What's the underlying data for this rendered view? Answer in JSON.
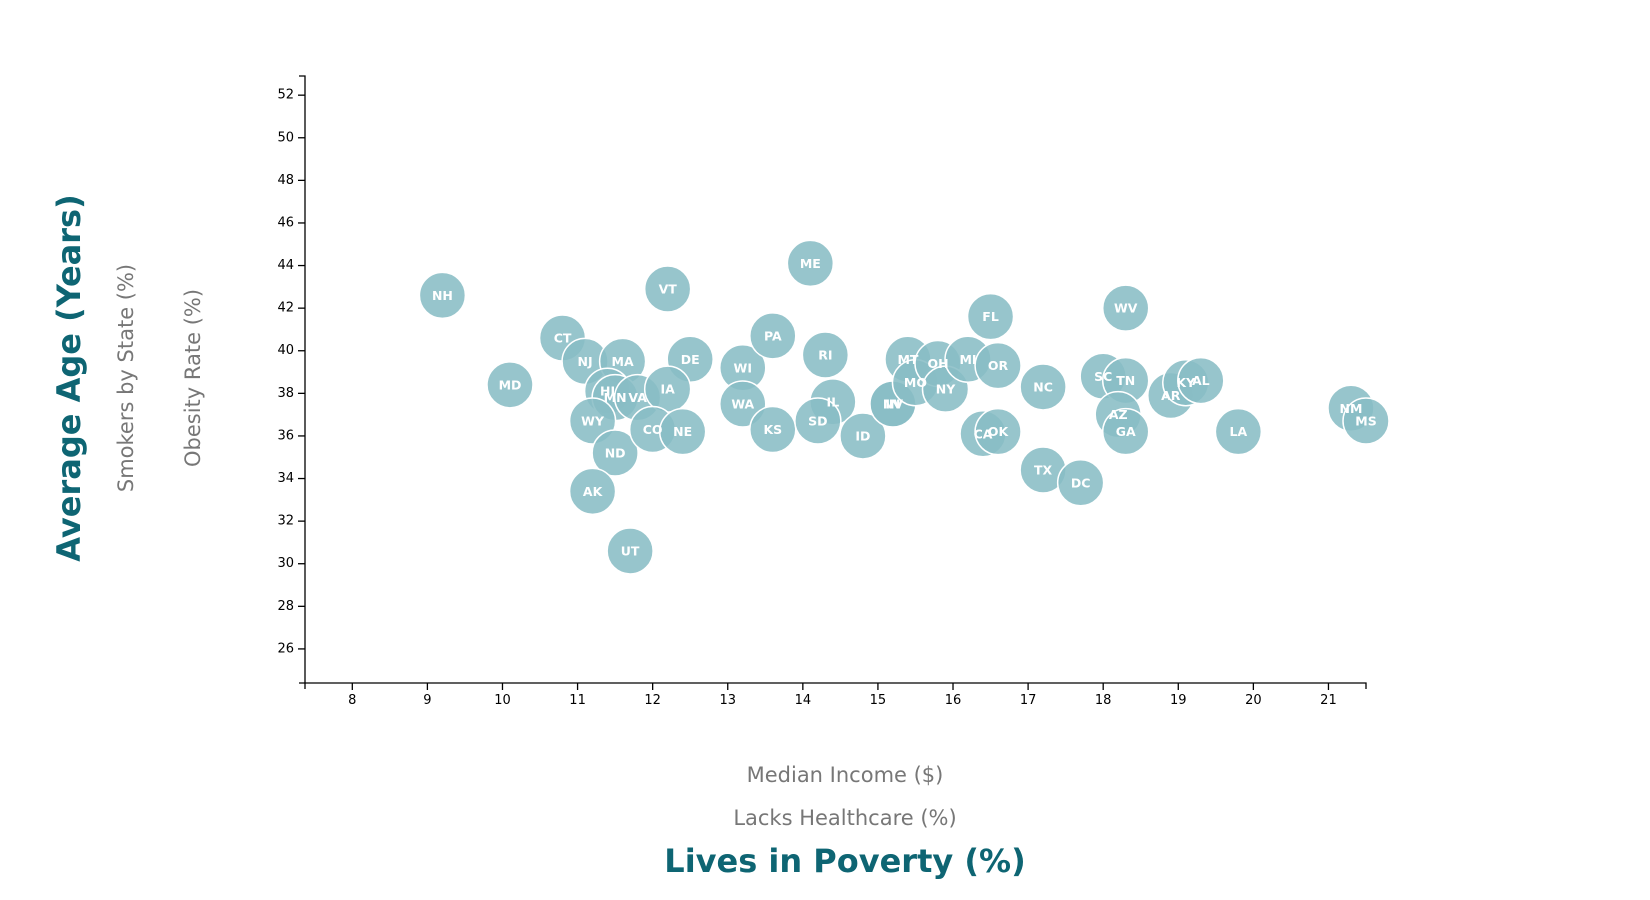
{
  "chart_data": {
    "type": "scatter",
    "title": "",
    "xlim": [
      7.37,
      21.5
    ],
    "ylim": [
      24.4,
      52.9
    ],
    "x_ticks": [
      8,
      9,
      10,
      11,
      12,
      13,
      14,
      15,
      16,
      17,
      18,
      19,
      20,
      21
    ],
    "y_ticks": [
      26,
      28,
      30,
      32,
      34,
      36,
      38,
      40,
      42,
      44,
      46,
      48,
      50,
      52
    ],
    "x_axis_labels": {
      "income": "Median Income ($)",
      "healthcare": "Lacks Healthcare (%)",
      "poverty": "Lives in Poverty (%)"
    },
    "y_axis_labels": {
      "age": "Average Age (Years)",
      "smokers": "Smokers by State (%)",
      "obesity": "Obesity Rate (%)"
    },
    "active_x": "poverty",
    "active_y": "age",
    "colors": {
      "circle_fill": "#89bdc5",
      "active_label": "#0e6573",
      "inactive_label": "#777777"
    },
    "points": [
      {
        "abbr": "NH",
        "poverty": 9.2,
        "age": 42.6
      },
      {
        "abbr": "MD",
        "poverty": 10.1,
        "age": 38.4
      },
      {
        "abbr": "CT",
        "poverty": 10.8,
        "age": 40.6
      },
      {
        "abbr": "NJ",
        "poverty": 11.1,
        "age": 39.5
      },
      {
        "abbr": "MA",
        "poverty": 11.6,
        "age": 39.5
      },
      {
        "abbr": "HI",
        "poverty": 11.4,
        "age": 38.1
      },
      {
        "abbr": "MN",
        "poverty": 11.5,
        "age": 37.8
      },
      {
        "abbr": "VA",
        "poverty": 11.8,
        "age": 37.8
      },
      {
        "abbr": "WY",
        "poverty": 11.2,
        "age": 36.7
      },
      {
        "abbr": "ND",
        "poverty": 11.5,
        "age": 35.2
      },
      {
        "abbr": "AK",
        "poverty": 11.2,
        "age": 33.4
      },
      {
        "abbr": "UT",
        "poverty": 11.7,
        "age": 30.6
      },
      {
        "abbr": "VT",
        "poverty": 12.2,
        "age": 42.9
      },
      {
        "abbr": "DE",
        "poverty": 12.5,
        "age": 39.6
      },
      {
        "abbr": "IA",
        "poverty": 12.2,
        "age": 38.2
      },
      {
        "abbr": "CO",
        "poverty": 12.0,
        "age": 36.3
      },
      {
        "abbr": "NE",
        "poverty": 12.4,
        "age": 36.2
      },
      {
        "abbr": "WI",
        "poverty": 13.2,
        "age": 39.2
      },
      {
        "abbr": "WA",
        "poverty": 13.2,
        "age": 37.5
      },
      {
        "abbr": "PA",
        "poverty": 13.6,
        "age": 40.7
      },
      {
        "abbr": "KS",
        "poverty": 13.6,
        "age": 36.3
      },
      {
        "abbr": "ME",
        "poverty": 14.1,
        "age": 44.1
      },
      {
        "abbr": "RI",
        "poverty": 14.3,
        "age": 39.8
      },
      {
        "abbr": "IL",
        "poverty": 14.4,
        "age": 37.6
      },
      {
        "abbr": "SD",
        "poverty": 14.2,
        "age": 36.7
      },
      {
        "abbr": "ID",
        "poverty": 14.8,
        "age": 36.0
      },
      {
        "abbr": "NV",
        "poverty": 15.2,
        "age": 37.5
      },
      {
        "abbr": "IN",
        "poverty": 15.2,
        "age": 37.5
      },
      {
        "abbr": "MT",
        "poverty": 15.4,
        "age": 39.6
      },
      {
        "abbr": "MO",
        "poverty": 15.5,
        "age": 38.5
      },
      {
        "abbr": "OH",
        "poverty": 15.8,
        "age": 39.4
      },
      {
        "abbr": "NY",
        "poverty": 15.9,
        "age": 38.2
      },
      {
        "abbr": "MI",
        "poverty": 16.2,
        "age": 39.6
      },
      {
        "abbr": "FL",
        "poverty": 16.5,
        "age": 41.6
      },
      {
        "abbr": "OR",
        "poverty": 16.6,
        "age": 39.3
      },
      {
        "abbr": "CA",
        "poverty": 16.4,
        "age": 36.1
      },
      {
        "abbr": "OK",
        "poverty": 16.6,
        "age": 36.2
      },
      {
        "abbr": "NC",
        "poverty": 17.2,
        "age": 38.3
      },
      {
        "abbr": "TX",
        "poverty": 17.2,
        "age": 34.4
      },
      {
        "abbr": "DC",
        "poverty": 17.7,
        "age": 33.8
      },
      {
        "abbr": "SC",
        "poverty": 18.0,
        "age": 38.8
      },
      {
        "abbr": "TN",
        "poverty": 18.3,
        "age": 38.6
      },
      {
        "abbr": "AZ",
        "poverty": 18.2,
        "age": 37.0
      },
      {
        "abbr": "GA",
        "poverty": 18.3,
        "age": 36.2
      },
      {
        "abbr": "WV",
        "poverty": 18.3,
        "age": 42.0
      },
      {
        "abbr": "AR",
        "poverty": 18.9,
        "age": 37.9
      },
      {
        "abbr": "KY",
        "poverty": 19.1,
        "age": 38.5
      },
      {
        "abbr": "AL",
        "poverty": 19.3,
        "age": 38.6
      },
      {
        "abbr": "LA",
        "poverty": 19.8,
        "age": 36.2
      },
      {
        "abbr": "NM",
        "poverty": 21.3,
        "age": 37.3
      },
      {
        "abbr": "MS",
        "poverty": 21.5,
        "age": 36.7
      }
    ]
  }
}
